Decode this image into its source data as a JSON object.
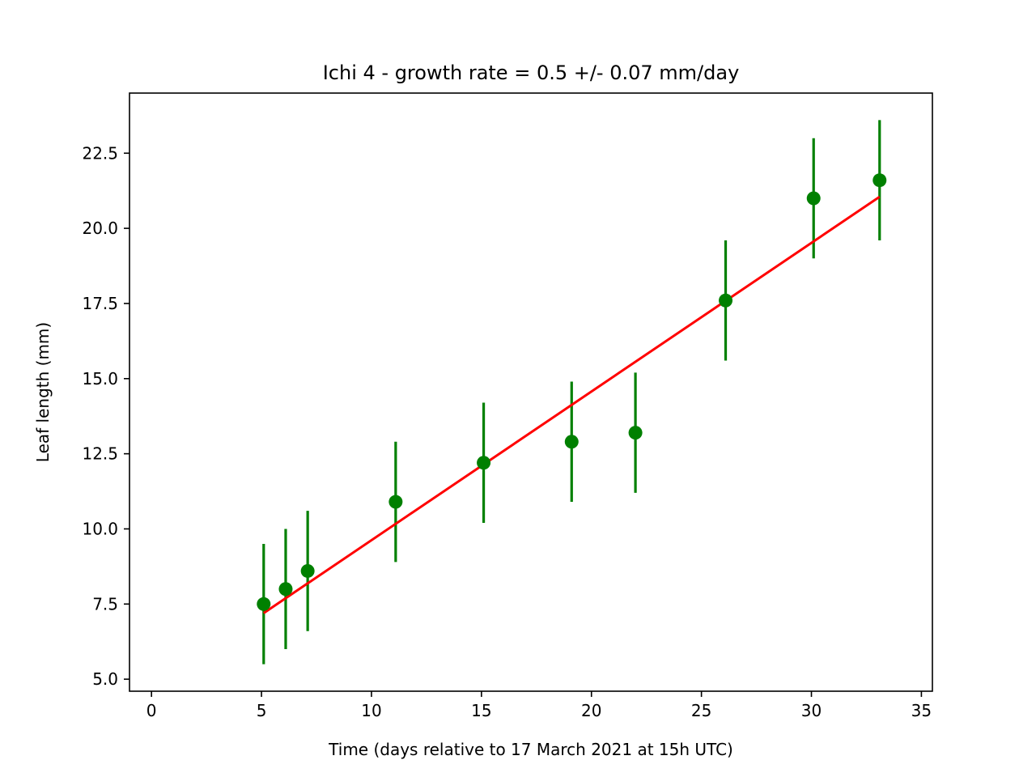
{
  "chart_data": {
    "type": "scatter",
    "title": "Ichi 4  -  growth rate =  0.5 +/- 0.07 mm/day",
    "xlabel": "Time (days relative to 17 March 2021 at 15h UTC)",
    "ylabel": "Leaf length (mm)",
    "xlim": [
      -1,
      35.5
    ],
    "ylim": [
      4.6,
      24.5
    ],
    "xticks": [
      0,
      5,
      10,
      15,
      20,
      25,
      30,
      35
    ],
    "xtick_labels": [
      "0",
      "5",
      "10",
      "15",
      "20",
      "25",
      "30",
      "35"
    ],
    "yticks": [
      5.0,
      7.5,
      10.0,
      12.5,
      15.0,
      17.5,
      20.0,
      22.5
    ],
    "ytick_labels": [
      "5.0",
      "7.5",
      "10.0",
      "12.5",
      "15.0",
      "17.5",
      "20.0",
      "22.5"
    ],
    "grid": false,
    "series": [
      {
        "kind": "errorbar",
        "color": "#008000",
        "x": [
          5.1,
          6.1,
          7.1,
          11.1,
          15.1,
          19.1,
          22.0,
          26.1,
          30.1,
          33.1
        ],
        "y": [
          7.5,
          8.0,
          8.6,
          10.9,
          12.2,
          12.9,
          13.2,
          17.6,
          21.0,
          21.6
        ],
        "yerr": [
          2.0,
          2.0,
          2.0,
          2.0,
          2.0,
          2.0,
          2.0,
          2.0,
          2.0,
          2.0
        ]
      },
      {
        "kind": "fit-line",
        "color": "#ff0000",
        "x": [
          5.1,
          33.1
        ],
        "y": [
          7.2,
          21.05
        ]
      }
    ]
  }
}
